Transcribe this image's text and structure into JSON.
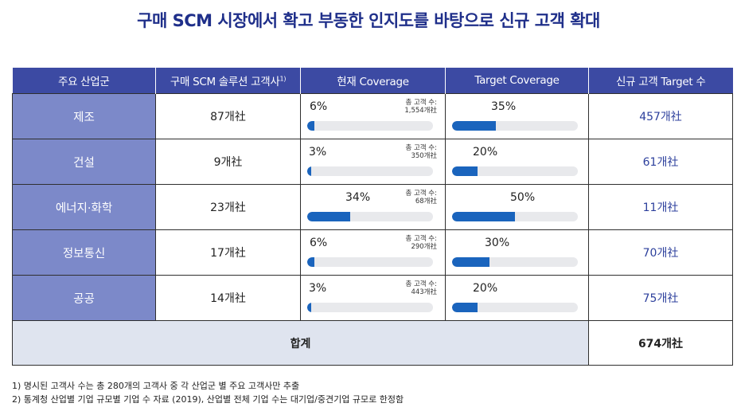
{
  "title": "구매 SCM 시장에서 확고 부동한 인지도를 바탕으로 신규 고객 확대",
  "headers": {
    "industry": "주요 산업군",
    "customers": "구매 SCM 솔루션 고객사",
    "customers_sup": "1)",
    "current": "현재 Coverage",
    "target": "Target Coverage",
    "new_target": "신규 고객 Target 수"
  },
  "rows": [
    {
      "industry": "제조",
      "customers": "87개社",
      "current_pct": "6%",
      "current_value": 6,
      "note_label": "총 고객 수:",
      "note_value": "1,554개社",
      "target_pct": "35%",
      "target_value": 35,
      "new_target": "457개社"
    },
    {
      "industry": "건설",
      "customers": "9개社",
      "current_pct": "3%",
      "current_value": 3,
      "note_label": "총 고객 수:",
      "note_value": "350개社",
      "target_pct": "20%",
      "target_value": 20,
      "new_target": "61개社"
    },
    {
      "industry": "에너지·화학",
      "customers": "23개社",
      "current_pct": "34%",
      "current_value": 34,
      "note_label": "총 고객 수:",
      "note_value": "68개社",
      "target_pct": "50%",
      "target_value": 50,
      "new_target": "11개社"
    },
    {
      "industry": "정보통신",
      "customers": "17개社",
      "current_pct": "6%",
      "current_value": 6,
      "note_label": "총 고객 수:",
      "note_value": "290개社",
      "target_pct": "30%",
      "target_value": 30,
      "new_target": "70개社"
    },
    {
      "industry": "공공",
      "customers": "14개社",
      "current_pct": "3%",
      "current_value": 3,
      "note_label": "총 고객 수:",
      "note_value": "443개社",
      "target_pct": "20%",
      "target_value": 20,
      "new_target": "75개社"
    }
  ],
  "total": {
    "label": "합계",
    "value": "674개社"
  },
  "footnotes": [
    "1) 명시된 고객사 수는 총 280개의 고객사 중 각 산업군 별 주요 고객사만 추출",
    "2) 통계청 산업별 기업 규모별 기업 수 자료 (2019), 산업별 전체 기업 수는 대기업/중견기업 규모로 한정함"
  ],
  "colors": {
    "header": "#3c4aa3",
    "industry_cell": "#7c89c9",
    "bar": "#1a64bd",
    "track": "#e8e9ec",
    "total_row": "#dfe4ef",
    "title": "#1f2f8a"
  }
}
